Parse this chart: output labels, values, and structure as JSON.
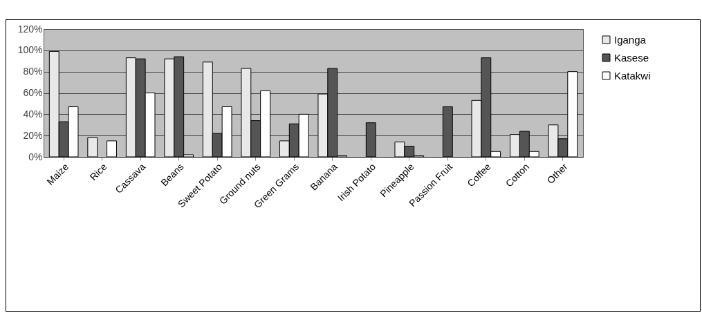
{
  "chart_data": {
    "type": "bar",
    "categories": [
      "Maize",
      "Rice",
      "Cassava",
      "Beans",
      "Sweet Potato",
      "Ground nuts",
      "Green Grams",
      "Banana",
      "Irish Potato",
      "Pineapple",
      "Passion Fruit",
      "Coffee",
      "Cotton",
      "Other"
    ],
    "series": [
      {
        "name": "Iganga",
        "color": "#e8e8e8",
        "values": [
          99,
          18,
          93,
          92,
          89,
          83,
          15,
          59,
          0,
          14,
          0,
          53,
          21,
          30
        ]
      },
      {
        "name": "Kasese",
        "color": "#555555",
        "values": [
          33,
          0,
          92,
          94,
          22,
          34,
          31,
          83,
          32,
          10,
          47,
          93,
          24,
          17
        ]
      },
      {
        "name": "Katakwi",
        "color": "#ffffff",
        "values": [
          47,
          15,
          60,
          2,
          47,
          62,
          40,
          1,
          0,
          1,
          0,
          5,
          5,
          80
        ]
      }
    ],
    "ylim": [
      0,
      120
    ],
    "yticks": [
      {
        "value": 0,
        "label": "0%"
      },
      {
        "value": 20,
        "label": "20%"
      },
      {
        "value": 40,
        "label": "40%"
      },
      {
        "value": 60,
        "label": "60%"
      },
      {
        "value": 80,
        "label": "80%"
      },
      {
        "value": 100,
        "label": "100%"
      },
      {
        "value": 120,
        "label": "120%"
      }
    ],
    "grid": "y",
    "legend": "right"
  }
}
